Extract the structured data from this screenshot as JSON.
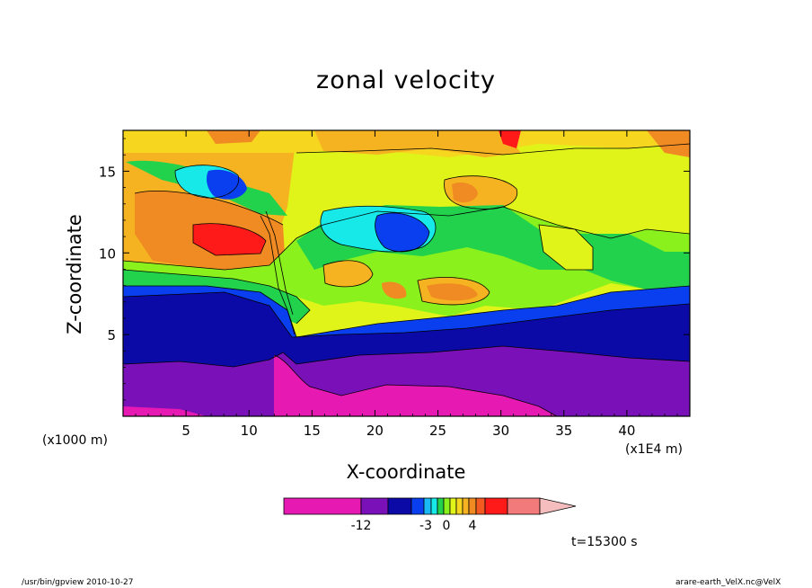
{
  "chart_data": {
    "type": "heatmap",
    "title": "zonal velocity",
    "xlabel": "X-coordinate",
    "ylabel": "Z-coordinate",
    "x_unit_left": "(x1000 m)",
    "x_unit_right": "(x1E4 m)",
    "xlim": [
      0,
      45
    ],
    "ylim": [
      0,
      17.5
    ],
    "x_ticks": [
      5,
      10,
      15,
      20,
      25,
      30,
      35,
      40
    ],
    "y_ticks": [
      5,
      10,
      15
    ],
    "colorbar": {
      "colors": [
        "#e61ab3",
        "#7a11b8",
        "#0b0aa6",
        "#0a3ff0",
        "#1ab8f5",
        "#17e8e8",
        "#22d24d",
        "#8af11c",
        "#e0f41a",
        "#f7d61f",
        "#f5b321",
        "#f08a22",
        "#f25a22",
        "#ff1a1a",
        "#f37a7a",
        "#f5bdbd"
      ],
      "tick_labels": [
        "-12",
        "-3",
        "0",
        "4"
      ],
      "extend": "max"
    },
    "annotation_time": "t=15300 s"
  },
  "footer": {
    "left": "/usr/bin/gpview   2010-10-27",
    "right": "arare-earth_VelX.nc@VelX"
  }
}
